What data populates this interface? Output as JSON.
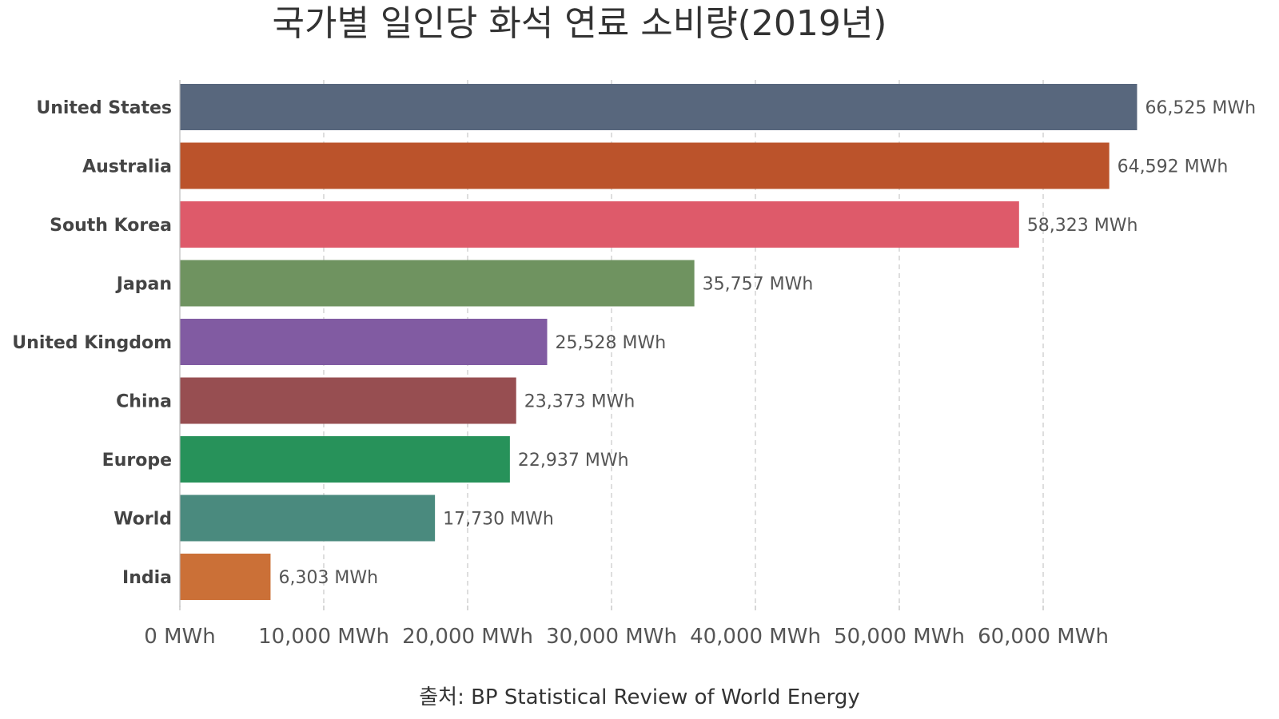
{
  "chart_data": {
    "type": "bar",
    "orientation": "horizontal",
    "title": "국가별 일인당 화석 연료 소비량(2019년)",
    "source": "출처: BP Statistical Review of World Energy",
    "categories": [
      "United States",
      "Australia",
      "South Korea",
      "Japan",
      "United Kingdom",
      "China",
      "Europe",
      "World",
      "India"
    ],
    "values": [
      66525,
      64592,
      58323,
      35757,
      25528,
      23373,
      22937,
      17730,
      6303
    ],
    "value_labels": [
      "66,525 MWh",
      "64,592 MWh",
      "58,323 MWh",
      "35,757 MWh",
      "25,528 MWh",
      "23,373 MWh",
      "22,937 MWh",
      "17,730 MWh",
      "6,303 MWh"
    ],
    "colors": [
      "#58677d",
      "#bb532b",
      "#de5a6a",
      "#6f9360",
      "#815ba2",
      "#974e51",
      "#27925a",
      "#4a8a7e",
      "#cb7037"
    ],
    "x_ticks": [
      0,
      10000,
      20000,
      30000,
      40000,
      50000,
      60000
    ],
    "x_tick_labels": [
      "0 MWh",
      "10,000 MWh",
      "20,000 MWh",
      "30,000 MWh",
      "40,000 MWh",
      "50,000 MWh",
      "60,000 MWh"
    ],
    "xlim": [
      0,
      66525
    ],
    "grid": true
  }
}
